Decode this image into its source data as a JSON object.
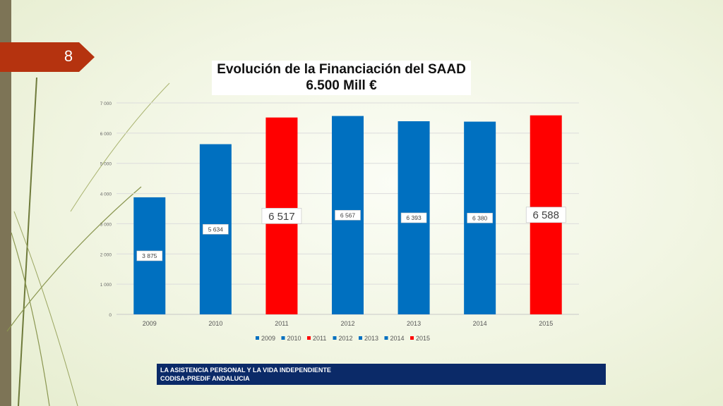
{
  "slide": {
    "page_number": "8"
  },
  "title": {
    "line1": "Evolución de la Financiación del SAAD",
    "line2": "6.500 Mill €"
  },
  "footer": {
    "line1": "LA ASISTENCIA PERSONAL Y LA VIDA INDEPENDIENTE",
    "line2": "CODISA-PREDIF ANDALUCIA"
  },
  "colors": {
    "blue": "#0070c0",
    "red": "#ff0000",
    "badge": "#b5330f",
    "footer": "#0b2a68"
  },
  "chart_data": {
    "type": "bar",
    "categories": [
      "2009",
      "2010",
      "2011",
      "2012",
      "2013",
      "2014",
      "2015"
    ],
    "values": [
      3875,
      5634,
      6517,
      6567,
      6393,
      6380,
      6588
    ],
    "data_labels": [
      "3 875",
      "5 634",
      "6 517",
      "6 567",
      "6 393",
      "6 380",
      "6 588"
    ],
    "bar_colors": [
      "#0070c0",
      "#0070c0",
      "#ff0000",
      "#0070c0",
      "#0070c0",
      "#0070c0",
      "#ff0000"
    ],
    "emphasized": [
      false,
      false,
      true,
      false,
      false,
      false,
      true
    ],
    "ylim": [
      0,
      7000
    ],
    "yticks": [
      0,
      1000,
      2000,
      3000,
      4000,
      5000,
      6000,
      7000
    ],
    "ytick_labels": [
      "0",
      "1 000",
      "2 000",
      "3 000",
      "4 000",
      "5 000",
      "6 000",
      "7 000"
    ],
    "grid": true,
    "legend": {
      "position": "bottom",
      "entries": [
        "2009",
        "2010",
        "2011",
        "2012",
        "2013",
        "2014",
        "2015"
      ],
      "colors": [
        "#0070c0",
        "#0070c0",
        "#ff0000",
        "#0070c0",
        "#0070c0",
        "#0070c0",
        "#ff0000"
      ]
    }
  }
}
